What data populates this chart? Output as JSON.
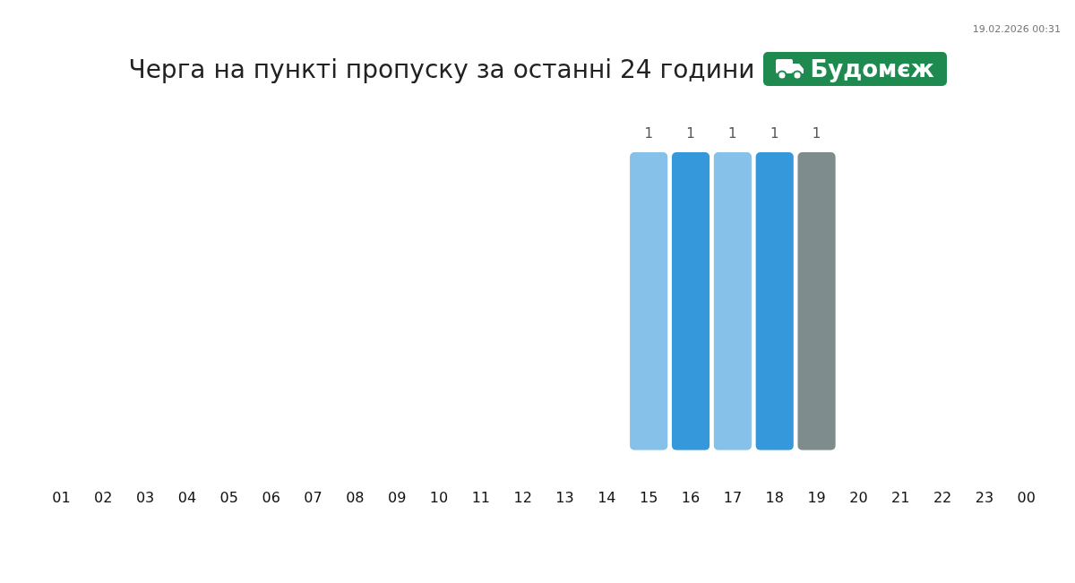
{
  "chart_data": {
    "type": "bar",
    "title": "Черга на пункті пропуску за останні 24 години",
    "subtitle": "Будомєж",
    "annotations": [
      "19.02.2026 00:31"
    ],
    "categories": [
      "01",
      "02",
      "03",
      "04",
      "05",
      "06",
      "07",
      "08",
      "09",
      "10",
      "11",
      "12",
      "13",
      "14",
      "15",
      "16",
      "17",
      "18",
      "19",
      "20",
      "21",
      "22",
      "23",
      "00"
    ],
    "values": [
      null,
      null,
      null,
      null,
      null,
      null,
      null,
      null,
      null,
      null,
      null,
      null,
      null,
      null,
      1,
      1,
      1,
      1,
      1,
      null,
      null,
      null,
      null,
      null
    ],
    "colors": [
      "#85c1e9",
      "#85c1e9",
      "#85c1e9",
      "#85c1e9",
      "#85c1e9",
      "#85c1e9",
      "#85c1e9",
      "#85c1e9",
      "#85c1e9",
      "#85c1e9",
      "#85c1e9",
      "#85c1e9",
      "#85c1e9",
      "#85c1e9",
      "#85c1e9",
      "#3498db",
      "#85c1e9",
      "#3498db",
      "#7f8c8d",
      "#85c1e9",
      "#85c1e9",
      "#85c1e9",
      "#85c1e9",
      "#85c1e9"
    ],
    "ylim": [
      0,
      1
    ],
    "tick_labels": "x",
    "data_labels": true,
    "grid": false,
    "legend": false
  }
}
